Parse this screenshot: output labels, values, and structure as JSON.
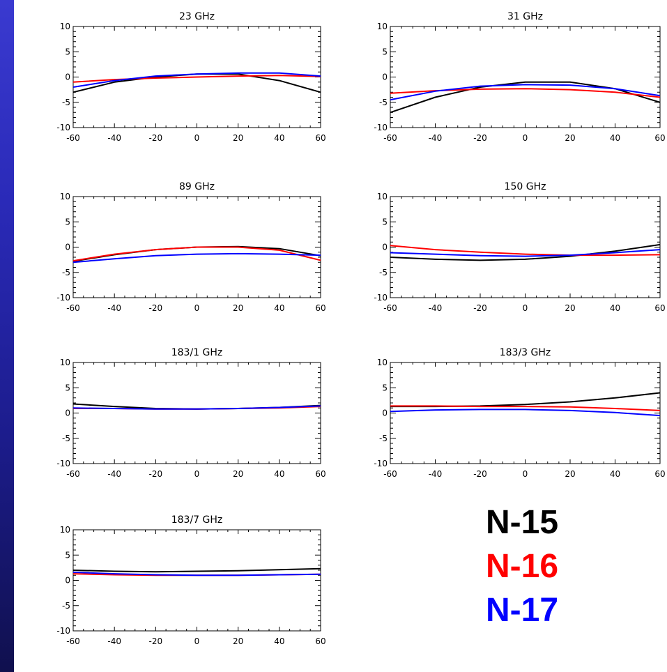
{
  "legend": [
    {
      "label": "N-15",
      "color": "#000000"
    },
    {
      "label": "N-16",
      "color": "#ff0000"
    },
    {
      "label": "N-17",
      "color": "#0000ff"
    }
  ],
  "chart_data": [
    {
      "type": "line",
      "title": "23 GHz",
      "xlim": [
        -60,
        60
      ],
      "ylim": [
        -10,
        10
      ],
      "xticks": [
        -60,
        -40,
        -20,
        0,
        20,
        40,
        60
      ],
      "yticks": [
        10,
        5,
        0,
        -5,
        -10
      ],
      "series": [
        {
          "name": "N-15",
          "color": "#000000",
          "x": [
            -60,
            -40,
            -20,
            0,
            20,
            40,
            60
          ],
          "y": [
            -3.0,
            -1.0,
            0.0,
            0.6,
            0.6,
            -0.7,
            -3.0
          ]
        },
        {
          "name": "N-16",
          "color": "#ff0000",
          "x": [
            -60,
            -40,
            -20,
            0,
            20,
            40,
            60
          ],
          "y": [
            -1.0,
            -0.5,
            -0.2,
            0.0,
            0.2,
            0.3,
            0.1
          ]
        },
        {
          "name": "N-17",
          "color": "#0000ff",
          "x": [
            -60,
            -40,
            -20,
            0,
            20,
            40,
            60
          ],
          "y": [
            -2.0,
            -0.7,
            0.2,
            0.6,
            0.8,
            0.8,
            0.2
          ]
        }
      ]
    },
    {
      "type": "line",
      "title": "31 GHz",
      "xlim": [
        -60,
        60
      ],
      "ylim": [
        -10,
        10
      ],
      "xticks": [
        -60,
        -40,
        -20,
        0,
        20,
        40,
        60
      ],
      "yticks": [
        10,
        5,
        0,
        -5,
        -10
      ],
      "series": [
        {
          "name": "N-15",
          "color": "#000000",
          "x": [
            -60,
            -40,
            -20,
            0,
            20,
            40,
            60
          ],
          "y": [
            -7.0,
            -4.0,
            -2.0,
            -1.0,
            -1.0,
            -2.3,
            -5.0
          ]
        },
        {
          "name": "N-16",
          "color": "#ff0000",
          "x": [
            -60,
            -40,
            -20,
            0,
            20,
            40,
            60
          ],
          "y": [
            -3.2,
            -2.7,
            -2.4,
            -2.3,
            -2.5,
            -3.0,
            -4.0
          ]
        },
        {
          "name": "N-17",
          "color": "#0000ff",
          "x": [
            -60,
            -40,
            -20,
            0,
            20,
            40,
            60
          ],
          "y": [
            -4.5,
            -2.8,
            -1.8,
            -1.5,
            -1.6,
            -2.3,
            -3.7
          ]
        }
      ]
    },
    {
      "type": "line",
      "title": "89 GHz",
      "xlim": [
        -60,
        60
      ],
      "ylim": [
        -10,
        10
      ],
      "xticks": [
        -60,
        -40,
        -20,
        0,
        20,
        40,
        60
      ],
      "yticks": [
        10,
        5,
        0,
        -5,
        -10
      ],
      "series": [
        {
          "name": "N-15",
          "color": "#000000",
          "x": [
            -60,
            -40,
            -20,
            0,
            20,
            40,
            60
          ],
          "y": [
            -2.8,
            -1.5,
            -0.5,
            0.0,
            0.1,
            -0.3,
            -1.7
          ]
        },
        {
          "name": "N-16",
          "color": "#ff0000",
          "x": [
            -60,
            -40,
            -20,
            0,
            20,
            40,
            60
          ],
          "y": [
            -2.7,
            -1.4,
            -0.5,
            0.0,
            0.0,
            -0.6,
            -2.6
          ]
        },
        {
          "name": "N-17",
          "color": "#0000ff",
          "x": [
            -60,
            -40,
            -20,
            0,
            20,
            40,
            60
          ],
          "y": [
            -3.0,
            -2.3,
            -1.7,
            -1.4,
            -1.3,
            -1.4,
            -1.6
          ]
        }
      ]
    },
    {
      "type": "line",
      "title": "150 GHz",
      "xlim": [
        -60,
        60
      ],
      "ylim": [
        -10,
        10
      ],
      "xticks": [
        -60,
        -40,
        -20,
        0,
        20,
        40,
        60
      ],
      "yticks": [
        10,
        5,
        0,
        -5,
        -10
      ],
      "series": [
        {
          "name": "N-15",
          "color": "#000000",
          "x": [
            -60,
            -40,
            -20,
            0,
            20,
            40,
            60
          ],
          "y": [
            -2.0,
            -2.4,
            -2.6,
            -2.4,
            -1.8,
            -0.8,
            0.5
          ]
        },
        {
          "name": "N-16",
          "color": "#ff0000",
          "x": [
            -60,
            -40,
            -20,
            0,
            20,
            40,
            60
          ],
          "y": [
            0.3,
            -0.5,
            -1.0,
            -1.4,
            -1.6,
            -1.6,
            -1.5
          ]
        },
        {
          "name": "N-17",
          "color": "#0000ff",
          "x": [
            -60,
            -40,
            -20,
            0,
            20,
            40,
            60
          ],
          "y": [
            -1.1,
            -1.4,
            -1.7,
            -1.8,
            -1.6,
            -1.1,
            -0.5
          ]
        }
      ]
    },
    {
      "type": "line",
      "title": "183/1 GHz",
      "xlim": [
        -60,
        60
      ],
      "ylim": [
        -10,
        10
      ],
      "xticks": [
        -60,
        -40,
        -20,
        0,
        20,
        40,
        60
      ],
      "yticks": [
        10,
        5,
        0,
        -5,
        -10
      ],
      "series": [
        {
          "name": "N-15",
          "color": "#000000",
          "x": [
            -60,
            -40,
            -20,
            0,
            20,
            40,
            60
          ],
          "y": [
            1.8,
            1.3,
            0.9,
            0.8,
            0.9,
            1.1,
            1.5
          ]
        },
        {
          "name": "N-16",
          "color": "#ff0000",
          "x": [
            -60,
            -40,
            -20,
            0,
            20,
            40,
            60
          ],
          "y": [
            0.9,
            0.9,
            0.8,
            0.8,
            0.9,
            1.0,
            1.3
          ]
        },
        {
          "name": "N-17",
          "color": "#0000ff",
          "x": [
            -60,
            -40,
            -20,
            0,
            20,
            40,
            60
          ],
          "y": [
            1.0,
            0.9,
            0.8,
            0.8,
            0.9,
            1.1,
            1.4
          ]
        }
      ]
    },
    {
      "type": "line",
      "title": "183/3 GHz",
      "xlim": [
        -60,
        60
      ],
      "ylim": [
        -10,
        10
      ],
      "xticks": [
        -60,
        -40,
        -20,
        0,
        20,
        40,
        60
      ],
      "yticks": [
        10,
        5,
        0,
        -5,
        -10
      ],
      "series": [
        {
          "name": "N-15",
          "color": "#000000",
          "x": [
            -60,
            -40,
            -20,
            0,
            20,
            40,
            60
          ],
          "y": [
            1.3,
            1.3,
            1.4,
            1.7,
            2.2,
            3.0,
            4.0
          ]
        },
        {
          "name": "N-16",
          "color": "#ff0000",
          "x": [
            -60,
            -40,
            -20,
            0,
            20,
            40,
            60
          ],
          "y": [
            1.4,
            1.4,
            1.3,
            1.3,
            1.2,
            0.9,
            0.5
          ]
        },
        {
          "name": "N-17",
          "color": "#0000ff",
          "x": [
            -60,
            -40,
            -20,
            0,
            20,
            40,
            60
          ],
          "y": [
            0.3,
            0.6,
            0.7,
            0.7,
            0.5,
            0.1,
            -0.5
          ]
        }
      ]
    },
    {
      "type": "line",
      "title": "183/7 GHz",
      "xlim": [
        -60,
        60
      ],
      "ylim": [
        -10,
        10
      ],
      "xticks": [
        -60,
        -40,
        -20,
        0,
        20,
        40,
        60
      ],
      "yticks": [
        10,
        5,
        0,
        -5,
        -10
      ],
      "series": [
        {
          "name": "N-15",
          "color": "#000000",
          "x": [
            -60,
            -40,
            -20,
            0,
            20,
            40,
            60
          ],
          "y": [
            2.0,
            1.8,
            1.7,
            1.8,
            1.9,
            2.1,
            2.3
          ]
        },
        {
          "name": "N-16",
          "color": "#ff0000",
          "x": [
            -60,
            -40,
            -20,
            0,
            20,
            40,
            60
          ],
          "y": [
            1.3,
            1.1,
            1.0,
            1.0,
            1.0,
            1.1,
            1.2
          ]
        },
        {
          "name": "N-17",
          "color": "#0000ff",
          "x": [
            -60,
            -40,
            -20,
            0,
            20,
            40,
            60
          ],
          "y": [
            1.6,
            1.3,
            1.1,
            1.0,
            1.0,
            1.1,
            1.2
          ]
        }
      ]
    }
  ]
}
